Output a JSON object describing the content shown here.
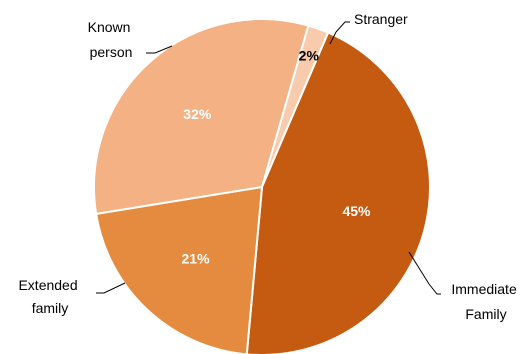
{
  "chart_data": {
    "type": "pie",
    "title": "",
    "slices": [
      {
        "label": "Stranger",
        "value": 2,
        "value_label": "2%",
        "color": "#F8CBAD",
        "label_color": "#000000"
      },
      {
        "label": "Immediate Family",
        "value": 45,
        "value_label": "45%",
        "color": "#C55A11",
        "label_color": "#FFFFFF"
      },
      {
        "label": "Extended family",
        "value": 21,
        "value_label": "21%",
        "color": "#E48B3F",
        "label_color": "#FFFFFF"
      },
      {
        "label": "Known person",
        "value": 32,
        "value_label": "32%",
        "color": "#F4B183",
        "label_color": "#FFFFFF"
      }
    ],
    "legend": "none"
  },
  "labels": {
    "stranger": [
      "Stranger"
    ],
    "immediate": [
      "Immediate",
      "Family"
    ],
    "extended": [
      "Extended",
      "family"
    ],
    "known": [
      "Known",
      "person"
    ]
  }
}
